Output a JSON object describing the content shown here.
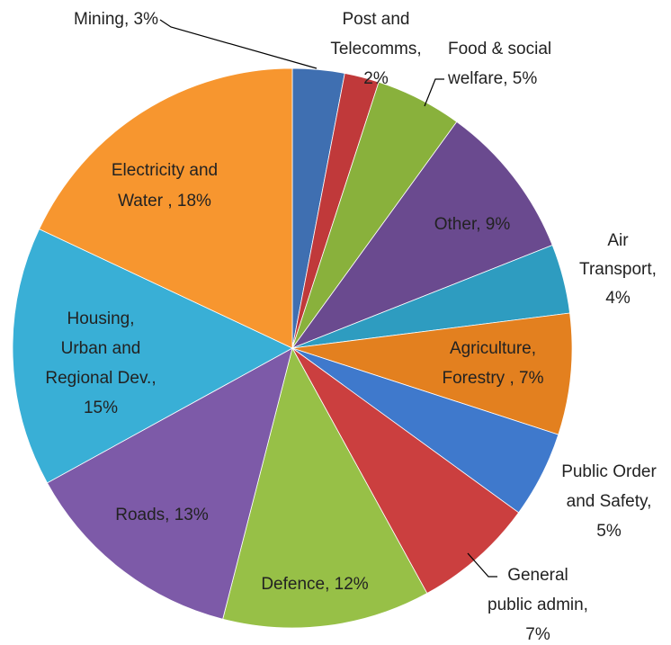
{
  "chart_data": {
    "type": "pie",
    "values": [
      3,
      2,
      5,
      9,
      4,
      7,
      5,
      7,
      12,
      13,
      15,
      18
    ],
    "value_labels": [
      [
        "Mining, 3%"
      ],
      [
        "Post and",
        "Telecomms,",
        "2%"
      ],
      [
        "Food & social",
        "welfare, 5%"
      ],
      [
        "Other, 9%"
      ],
      [
        "Air",
        "Transport,",
        "4%"
      ],
      [
        "Agriculture,",
        "Forestry , 7%"
      ],
      [
        "Public Order",
        "and Safety,",
        "5%"
      ],
      [
        "General",
        "public admin,",
        "7%"
      ],
      [
        "Defence, 12%"
      ],
      [
        "Roads, 13%"
      ],
      [
        "Housing,",
        "Urban and",
        "Regional Dev.,",
        "15%"
      ],
      [
        "Electricity and",
        "Water , 18%"
      ]
    ],
    "colors": [
      "#3f6fb1",
      "#c0393a",
      "#89b13c",
      "#6a4a8f",
      "#2e9cc0",
      "#e3801f",
      "#3f79cc",
      "#cb3f3f",
      "#97c047",
      "#7d5aa8",
      "#39afd6",
      "#f7962f"
    ]
  }
}
